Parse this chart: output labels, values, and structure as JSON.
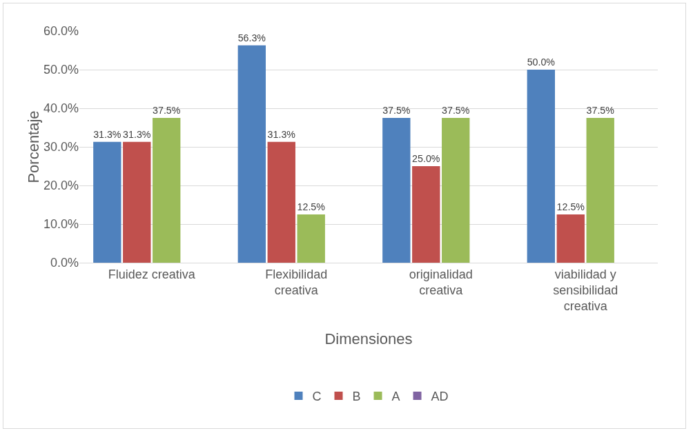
{
  "chart_data": {
    "type": "bar",
    "xlabel": "Dimensiones",
    "ylabel": "Porcentaje",
    "categories": [
      "Fluidez creativa",
      "Flexibilidad creativa",
      "originalidad creativa",
      "viabilidad y sensibilidad creativa"
    ],
    "series": [
      {
        "name": "C",
        "color": "#4f81bd",
        "values": [
          31.3,
          56.3,
          37.5,
          50.0
        ],
        "value_labels": [
          "31.3%",
          "56.3%",
          "37.5%",
          "50.0%"
        ]
      },
      {
        "name": "B",
        "color": "#c0504d",
        "values": [
          31.3,
          31.3,
          25.0,
          12.5
        ],
        "value_labels": [
          "31.3%",
          "31.3%",
          "25.0%",
          "12.5%"
        ]
      },
      {
        "name": "A",
        "color": "#9bbb59",
        "values": [
          37.5,
          12.5,
          37.5,
          37.5
        ],
        "value_labels": [
          "37.5%",
          "12.5%",
          "37.5%",
          "37.5%"
        ]
      },
      {
        "name": "AD",
        "color": "#8064a2",
        "values": [
          null,
          null,
          null,
          null
        ],
        "value_labels": [
          null,
          null,
          null,
          null
        ]
      }
    ],
    "ylim": [
      0,
      60
    ],
    "yticks": [
      {
        "value": 0,
        "label": "0.0%"
      },
      {
        "value": 10,
        "label": "10.0%"
      },
      {
        "value": 20,
        "label": "20.0%"
      },
      {
        "value": 30,
        "label": "30.0%"
      },
      {
        "value": 40,
        "label": "40.0%"
      },
      {
        "value": 50,
        "label": "50.0%"
      },
      {
        "value": 60,
        "label": "60.0%"
      }
    ],
    "grid": "y",
    "legend": "bottom"
  }
}
